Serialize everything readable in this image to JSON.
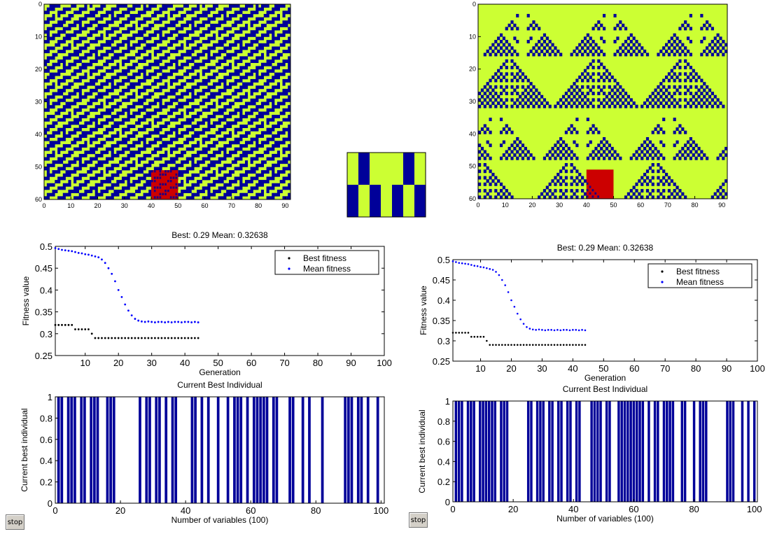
{
  "colors": {
    "ca_cell_on": "#CCFF33",
    "ca_cell_off": "#000099",
    "highlight": "#CC0000",
    "best_marker": "#000000",
    "mean_marker": "#0000FF",
    "bar": "#000099",
    "window_bg": "#FFFFFF",
    "button_bg": "#D4D0C8"
  },
  "buttons": {
    "stop_left": "stop",
    "stop_right": "stop"
  },
  "chart_data": [
    {
      "id": "ca-left",
      "type": "heatmap",
      "description_pattern": "rule-based cellular automaton with diagonal stripes (live cells = yellow-green, dead = dark blue)",
      "rows": 60,
      "cols": 92,
      "xlim": [
        0,
        92
      ],
      "ylim": [
        0,
        60
      ],
      "y_reversed": true,
      "xticks": [
        0,
        10,
        20,
        30,
        40,
        50,
        60,
        70,
        80,
        90
      ],
      "yticks": [
        0,
        10,
        20,
        30,
        40,
        50,
        60
      ],
      "highlight_region": {
        "x": [
          40,
          50
        ],
        "y": [
          51,
          60
        ]
      }
    },
    {
      "id": "rule-table",
      "type": "heatmap",
      "rows": 2,
      "cols": 7,
      "values": [
        [
          1,
          0,
          1,
          1,
          1,
          0,
          1
        ],
        [
          0,
          1,
          0,
          1,
          0,
          1,
          0
        ]
      ]
    },
    {
      "id": "ca-right",
      "type": "heatmap",
      "description_pattern": "rule-based cellular automaton with Sierpinski-like triangles (live cells = yellow-green, dead = dark blue)",
      "rows": 60,
      "cols": 92,
      "xlim": [
        0,
        92
      ],
      "ylim": [
        0,
        60
      ],
      "y_reversed": true,
      "xticks": [
        0,
        10,
        20,
        30,
        40,
        50,
        60,
        70,
        80,
        90
      ],
      "yticks": [
        0,
        10,
        20,
        30,
        40,
        50,
        60
      ],
      "highlight_region": {
        "x": [
          40,
          50
        ],
        "y": [
          51,
          60
        ]
      }
    },
    {
      "id": "fitness-left",
      "type": "scatter",
      "title": "Best: 0.29 Mean: 0.32638",
      "xlabel": "Generation",
      "ylabel": "Fitness value",
      "xlim": [
        1,
        100
      ],
      "ylim": [
        0.25,
        0.5
      ],
      "xticks": [
        10,
        20,
        30,
        40,
        50,
        60,
        70,
        80,
        90,
        100
      ],
      "yticks": [
        0.25,
        0.3,
        0.35,
        0.4,
        0.45,
        0.5
      ],
      "legend": {
        "placement": "top-right",
        "entries": [
          "Best fitness",
          "Mean fitness"
        ]
      },
      "series": [
        {
          "name": "Best fitness",
          "x": [
            1,
            2,
            3,
            4,
            5,
            6,
            7,
            8,
            9,
            10,
            11,
            12,
            13,
            14,
            15,
            16,
            17,
            18,
            19,
            20,
            21,
            22,
            23,
            24,
            25,
            26,
            27,
            28,
            29,
            30,
            31,
            32,
            33,
            34,
            35,
            36,
            37,
            38,
            39,
            40,
            41,
            42,
            43,
            44
          ],
          "y": [
            0.32,
            0.32,
            0.32,
            0.32,
            0.32,
            0.32,
            0.31,
            0.31,
            0.31,
            0.31,
            0.31,
            0.3,
            0.29,
            0.29,
            0.29,
            0.29,
            0.29,
            0.29,
            0.29,
            0.29,
            0.29,
            0.29,
            0.29,
            0.29,
            0.29,
            0.29,
            0.29,
            0.29,
            0.29,
            0.29,
            0.29,
            0.29,
            0.29,
            0.29,
            0.29,
            0.29,
            0.29,
            0.29,
            0.29,
            0.29,
            0.29,
            0.29,
            0.29,
            0.29
          ]
        },
        {
          "name": "Mean fitness",
          "x": [
            1,
            2,
            3,
            4,
            5,
            6,
            7,
            8,
            9,
            10,
            11,
            12,
            13,
            14,
            15,
            16,
            17,
            18,
            19,
            20,
            21,
            22,
            23,
            24,
            25,
            26,
            27,
            28,
            29,
            30,
            31,
            32,
            33,
            34,
            35,
            36,
            37,
            38,
            39,
            40,
            41,
            42,
            43,
            44
          ],
          "y": [
            0.496,
            0.494,
            0.492,
            0.491,
            0.49,
            0.489,
            0.487,
            0.485,
            0.484,
            0.482,
            0.481,
            0.479,
            0.477,
            0.475,
            0.47,
            0.462,
            0.45,
            0.437,
            0.42,
            0.4,
            0.384,
            0.367,
            0.353,
            0.342,
            0.334,
            0.33,
            0.328,
            0.327,
            0.328,
            0.327,
            0.326,
            0.327,
            0.327,
            0.326,
            0.327,
            0.326,
            0.327,
            0.327,
            0.326,
            0.327,
            0.327,
            0.326,
            0.327,
            0.326
          ]
        }
      ]
    },
    {
      "id": "fitness-right",
      "type": "scatter",
      "title": "Best: 0.29 Mean: 0.32638",
      "xlabel": "Generation",
      "ylabel": "Fitness value",
      "xlim": [
        1,
        100
      ],
      "ylim": [
        0.25,
        0.5
      ],
      "xticks": [
        10,
        20,
        30,
        40,
        50,
        60,
        70,
        80,
        90,
        100
      ],
      "yticks": [
        0.25,
        0.3,
        0.35,
        0.4,
        0.45,
        0.5
      ],
      "legend": {
        "placement": "top-right",
        "entries": [
          "Best fitness",
          "Mean fitness"
        ]
      },
      "series": [
        {
          "name": "Best fitness",
          "x": [
            1,
            2,
            3,
            4,
            5,
            6,
            7,
            8,
            9,
            10,
            11,
            12,
            13,
            14,
            15,
            16,
            17,
            18,
            19,
            20,
            21,
            22,
            23,
            24,
            25,
            26,
            27,
            28,
            29,
            30,
            31,
            32,
            33,
            34,
            35,
            36,
            37,
            38,
            39,
            40,
            41,
            42,
            43,
            44
          ],
          "y": [
            0.32,
            0.32,
            0.32,
            0.32,
            0.32,
            0.32,
            0.31,
            0.31,
            0.31,
            0.31,
            0.31,
            0.3,
            0.29,
            0.29,
            0.29,
            0.29,
            0.29,
            0.29,
            0.29,
            0.29,
            0.29,
            0.29,
            0.29,
            0.29,
            0.29,
            0.29,
            0.29,
            0.29,
            0.29,
            0.29,
            0.29,
            0.29,
            0.29,
            0.29,
            0.29,
            0.29,
            0.29,
            0.29,
            0.29,
            0.29,
            0.29,
            0.29,
            0.29,
            0.29
          ]
        },
        {
          "name": "Mean fitness",
          "x": [
            1,
            2,
            3,
            4,
            5,
            6,
            7,
            8,
            9,
            10,
            11,
            12,
            13,
            14,
            15,
            16,
            17,
            18,
            19,
            20,
            21,
            22,
            23,
            24,
            25,
            26,
            27,
            28,
            29,
            30,
            31,
            32,
            33,
            34,
            35,
            36,
            37,
            38,
            39,
            40,
            41,
            42,
            43,
            44
          ],
          "y": [
            0.496,
            0.494,
            0.492,
            0.491,
            0.49,
            0.489,
            0.487,
            0.485,
            0.484,
            0.482,
            0.481,
            0.479,
            0.477,
            0.475,
            0.47,
            0.462,
            0.45,
            0.437,
            0.42,
            0.4,
            0.384,
            0.367,
            0.353,
            0.342,
            0.334,
            0.33,
            0.328,
            0.327,
            0.328,
            0.327,
            0.326,
            0.327,
            0.327,
            0.326,
            0.327,
            0.326,
            0.327,
            0.327,
            0.326,
            0.327,
            0.327,
            0.326,
            0.327,
            0.326
          ]
        }
      ]
    },
    {
      "id": "best-left",
      "type": "bar",
      "title": "Current Best Individual",
      "xlabel": "Number of variables (100)",
      "ylabel": "Current best individual",
      "xlim": [
        0,
        101
      ],
      "ylim": [
        0,
        1
      ],
      "xticks": [
        0,
        20,
        40,
        60,
        80,
        100
      ],
      "yticks": [
        0,
        0.2,
        0.4,
        0.6,
        0.8,
        1
      ],
      "x": [
        1,
        2,
        3,
        4,
        5,
        6,
        7,
        8,
        9,
        10,
        11,
        12,
        13,
        14,
        15,
        16,
        17,
        18,
        19,
        20,
        21,
        22,
        23,
        24,
        25,
        26,
        27,
        28,
        29,
        30,
        31,
        32,
        33,
        34,
        35,
        36,
        37,
        38,
        39,
        40,
        41,
        42,
        43,
        44,
        45,
        46,
        47,
        48,
        49,
        50,
        51,
        52,
        53,
        54,
        55,
        56,
        57,
        58,
        59,
        60,
        61,
        62,
        63,
        64,
        65,
        66,
        67,
        68,
        69,
        70,
        71,
        72,
        73,
        74,
        75,
        76,
        77,
        78,
        79,
        80,
        81,
        82,
        83,
        84,
        85,
        86,
        87,
        88,
        89,
        90,
        91,
        92,
        93,
        94,
        95,
        96,
        97,
        98,
        99,
        100
      ],
      "values": [
        1,
        1,
        0,
        1,
        1,
        1,
        0,
        1,
        1,
        0,
        1,
        1,
        1,
        0,
        0,
        1,
        1,
        1,
        0,
        0,
        0,
        0,
        0,
        0,
        0,
        1,
        0,
        1,
        1,
        0,
        1,
        1,
        0,
        1,
        0,
        1,
        1,
        0,
        0,
        0,
        0,
        1,
        1,
        0,
        1,
        0,
        1,
        0,
        0,
        1,
        0,
        0,
        1,
        0,
        1,
        1,
        1,
        0,
        1,
        0,
        1,
        1,
        1,
        1,
        1,
        0,
        1,
        1,
        0,
        0,
        0,
        1,
        1,
        0,
        0,
        1,
        0,
        1,
        0,
        0,
        0,
        1,
        0,
        0,
        0,
        0,
        0,
        0,
        1,
        1,
        1,
        0,
        1,
        1,
        0,
        1,
        0,
        0,
        1,
        0
      ]
    },
    {
      "id": "best-right",
      "type": "bar",
      "title": "Current Best Individual",
      "xlabel": "Number of variables (100)",
      "ylabel": "Current best individual",
      "xlim": [
        0,
        101
      ],
      "ylim": [
        0,
        1
      ],
      "xticks": [
        0,
        20,
        40,
        60,
        80,
        100
      ],
      "yticks": [
        0,
        0.2,
        0.4,
        0.6,
        0.8,
        1
      ],
      "x": [
        1,
        2,
        3,
        4,
        5,
        6,
        7,
        8,
        9,
        10,
        11,
        12,
        13,
        14,
        15,
        16,
        17,
        18,
        19,
        20,
        21,
        22,
        23,
        24,
        25,
        26,
        27,
        28,
        29,
        30,
        31,
        32,
        33,
        34,
        35,
        36,
        37,
        38,
        39,
        40,
        41,
        42,
        43,
        44,
        45,
        46,
        47,
        48,
        49,
        50,
        51,
        52,
        53,
        54,
        55,
        56,
        57,
        58,
        59,
        60,
        61,
        62,
        63,
        64,
        65,
        66,
        67,
        68,
        69,
        70,
        71,
        72,
        73,
        74,
        75,
        76,
        77,
        78,
        79,
        80,
        81,
        82,
        83,
        84,
        85,
        86,
        87,
        88,
        89,
        90,
        91,
        92,
        93,
        94,
        95,
        96,
        97,
        98,
        99,
        100
      ],
      "values": [
        1,
        1,
        1,
        0,
        1,
        1,
        1,
        0,
        1,
        1,
        1,
        1,
        1,
        1,
        0,
        1,
        1,
        1,
        0,
        0,
        0,
        0,
        0,
        0,
        1,
        1,
        0,
        1,
        1,
        1,
        0,
        1,
        1,
        0,
        1,
        1,
        0,
        1,
        1,
        0,
        1,
        1,
        0,
        0,
        0,
        1,
        1,
        1,
        1,
        0,
        1,
        1,
        0,
        0,
        1,
        1,
        1,
        1,
        1,
        1,
        1,
        1,
        1,
        0,
        1,
        0,
        1,
        1,
        0,
        1,
        1,
        1,
        1,
        0,
        0,
        1,
        1,
        0,
        0,
        1,
        0,
        1,
        1,
        1,
        0,
        0,
        0,
        0,
        0,
        0,
        1,
        1,
        1,
        0,
        0,
        1,
        0,
        1,
        0,
        1
      ]
    }
  ]
}
